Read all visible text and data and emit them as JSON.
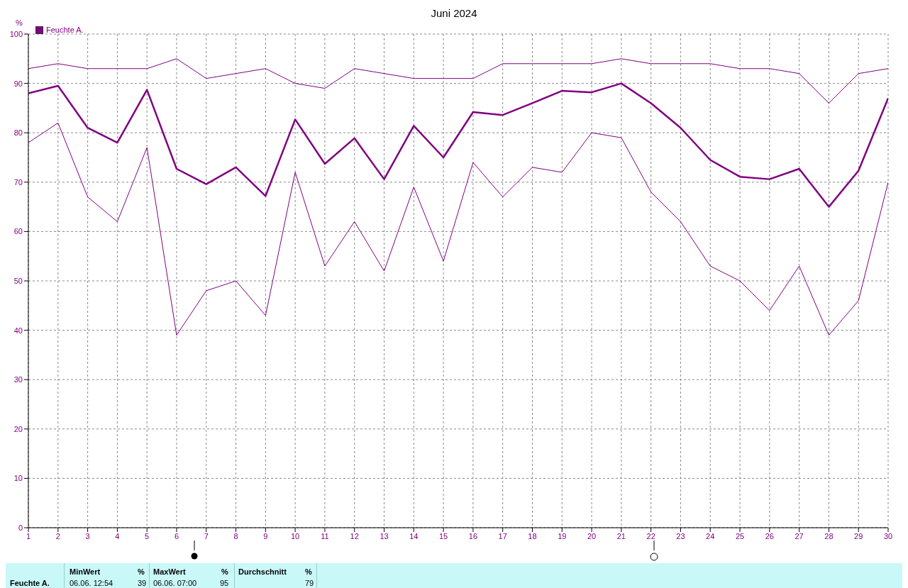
{
  "chart_data": {
    "type": "line",
    "title": "Juni 2024",
    "ylabel": "%",
    "x": [
      1,
      2,
      3,
      4,
      5,
      6,
      7,
      8,
      9,
      10,
      11,
      12,
      13,
      14,
      15,
      16,
      17,
      18,
      19,
      20,
      21,
      22,
      23,
      24,
      25,
      26,
      27,
      28,
      29,
      30
    ],
    "xlim": [
      1,
      30
    ],
    "xticks": [
      1,
      2,
      3,
      4,
      5,
      6,
      7,
      8,
      9,
      10,
      11,
      12,
      13,
      14,
      15,
      16,
      17,
      18,
      19,
      20,
      21,
      22,
      23,
      24,
      25,
      26,
      27,
      28,
      29,
      30
    ],
    "ylim": [
      0,
      100
    ],
    "yticks": [
      0,
      10,
      20,
      30,
      40,
      50,
      60,
      70,
      80,
      90,
      100
    ],
    "grid": true,
    "legend": "top left",
    "marker": "none",
    "line_style": "solid",
    "series": [
      {
        "color": "#800080",
        "values": [
          93,
          94,
          93,
          93,
          93,
          95,
          91,
          92,
          93,
          90,
          89,
          93,
          92,
          91,
          91,
          91,
          94,
          94,
          94,
          94,
          95,
          94,
          94,
          94,
          93,
          93,
          92,
          86,
          92,
          93
        ]
      },
      {
        "name": "Feuchte A.",
        "color": "#800080",
        "values": [
          88,
          89.5,
          81,
          78,
          88.7,
          72.7,
          69.6,
          73,
          67.2,
          82.7,
          73.7,
          78.9,
          70.6,
          81.4,
          75,
          84.2,
          83.6,
          86,
          88.5,
          88.2,
          90,
          86,
          81,
          74.5,
          71.1,
          70.6,
          72.7,
          65,
          72.3,
          87
        ]
      },
      {
        "color": "#800080",
        "values": [
          78,
          82,
          67,
          62,
          77,
          39,
          48,
          50,
          43,
          72,
          53,
          62,
          52,
          69,
          54,
          74,
          67,
          73,
          72,
          80,
          79,
          68,
          62,
          53,
          50,
          44,
          53,
          39,
          46,
          70
        ]
      }
    ],
    "annotations": [
      "Feuchte A.",
      "MinWert",
      "%",
      "06.06.  12:54",
      "39",
      "MaxWert",
      "%",
      "06.06.  07:00",
      "95",
      "Durchschnitt",
      "%",
      "79"
    ]
  }
}
